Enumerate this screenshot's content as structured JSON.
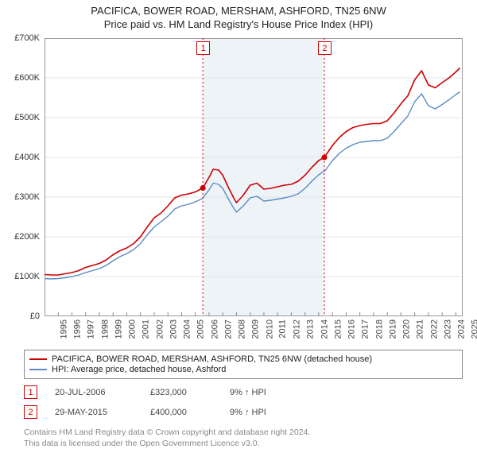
{
  "title": "PACIFICA, BOWER ROAD, MERSHAM, ASHFORD, TN25 6NW",
  "subtitle": "Price paid vs. HM Land Registry's House Price Index (HPI)",
  "chart": {
    "type": "line",
    "background_color": "#ffffff",
    "plot_band_color": "#eef3f8",
    "grid_color": "#e4e4e4",
    "x_domain": [
      1995,
      2025.5
    ],
    "y_domain": [
      0,
      700000
    ],
    "y_ticks": [
      0,
      100000,
      200000,
      300000,
      400000,
      500000,
      600000,
      700000
    ],
    "y_tick_labels": [
      "£0",
      "£100K",
      "£200K",
      "£300K",
      "£400K",
      "£500K",
      "£600K",
      "£700K"
    ],
    "x_ticks": [
      1995,
      1996,
      1997,
      1998,
      1999,
      2000,
      2001,
      2002,
      2003,
      2004,
      2005,
      2006,
      2007,
      2008,
      2009,
      2010,
      2011,
      2012,
      2013,
      2014,
      2015,
      2016,
      2017,
      2018,
      2019,
      2020,
      2021,
      2022,
      2023,
      2024,
      2025
    ],
    "plot_band": [
      2006.55,
      2015.41
    ],
    "series": [
      {
        "id": "property",
        "label": "PACIFICA, BOWER ROAD, MERSHAM, ASHFORD, TN25 6NW (detached house)",
        "color": "#cc0000",
        "width": 1.6,
        "points": [
          [
            1995.0,
            105000
          ],
          [
            1995.5,
            104000
          ],
          [
            1996.0,
            104000
          ],
          [
            1996.5,
            107000
          ],
          [
            1997.0,
            110000
          ],
          [
            1997.5,
            115000
          ],
          [
            1998.0,
            123000
          ],
          [
            1998.5,
            128000
          ],
          [
            1999.0,
            133000
          ],
          [
            1999.5,
            142000
          ],
          [
            2000.0,
            155000
          ],
          [
            2000.5,
            165000
          ],
          [
            2001.0,
            172000
          ],
          [
            2001.5,
            183000
          ],
          [
            2002.0,
            200000
          ],
          [
            2002.5,
            225000
          ],
          [
            2003.0,
            248000
          ],
          [
            2003.5,
            260000
          ],
          [
            2004.0,
            278000
          ],
          [
            2004.5,
            298000
          ],
          [
            2005.0,
            305000
          ],
          [
            2005.5,
            308000
          ],
          [
            2006.0,
            313000
          ],
          [
            2006.55,
            323000
          ],
          [
            2007.0,
            350000
          ],
          [
            2007.3,
            370000
          ],
          [
            2007.7,
            368000
          ],
          [
            2008.0,
            355000
          ],
          [
            2008.4,
            325000
          ],
          [
            2008.8,
            298000
          ],
          [
            2009.0,
            286000
          ],
          [
            2009.5,
            305000
          ],
          [
            2010.0,
            330000
          ],
          [
            2010.5,
            335000
          ],
          [
            2011.0,
            320000
          ],
          [
            2011.5,
            322000
          ],
          [
            2012.0,
            326000
          ],
          [
            2012.5,
            330000
          ],
          [
            2013.0,
            332000
          ],
          [
            2013.5,
            340000
          ],
          [
            2014.0,
            355000
          ],
          [
            2014.5,
            375000
          ],
          [
            2015.0,
            392000
          ],
          [
            2015.41,
            400000
          ],
          [
            2016.0,
            430000
          ],
          [
            2016.5,
            450000
          ],
          [
            2017.0,
            465000
          ],
          [
            2017.5,
            475000
          ],
          [
            2018.0,
            480000
          ],
          [
            2018.5,
            483000
          ],
          [
            2019.0,
            485000
          ],
          [
            2019.5,
            485000
          ],
          [
            2020.0,
            492000
          ],
          [
            2020.5,
            512000
          ],
          [
            2021.0,
            535000
          ],
          [
            2021.5,
            555000
          ],
          [
            2022.0,
            595000
          ],
          [
            2022.5,
            618000
          ],
          [
            2023.0,
            582000
          ],
          [
            2023.5,
            575000
          ],
          [
            2024.0,
            588000
          ],
          [
            2024.5,
            600000
          ],
          [
            2025.0,
            615000
          ],
          [
            2025.3,
            625000
          ]
        ]
      },
      {
        "id": "hpi",
        "label": "HPI: Average price, detached house, Ashford",
        "color": "#5b8bc5",
        "width": 1.4,
        "points": [
          [
            1995.0,
            95000
          ],
          [
            1995.5,
            94000
          ],
          [
            1996.0,
            95000
          ],
          [
            1996.5,
            97000
          ],
          [
            1997.0,
            100000
          ],
          [
            1997.5,
            104000
          ],
          [
            1998.0,
            110000
          ],
          [
            1998.5,
            115000
          ],
          [
            1999.0,
            120000
          ],
          [
            1999.5,
            128000
          ],
          [
            2000.0,
            140000
          ],
          [
            2000.5,
            150000
          ],
          [
            2001.0,
            158000
          ],
          [
            2001.5,
            168000
          ],
          [
            2002.0,
            183000
          ],
          [
            2002.5,
            205000
          ],
          [
            2003.0,
            225000
          ],
          [
            2003.5,
            238000
          ],
          [
            2004.0,
            252000
          ],
          [
            2004.5,
            270000
          ],
          [
            2005.0,
            278000
          ],
          [
            2005.5,
            282000
          ],
          [
            2006.0,
            288000
          ],
          [
            2006.5,
            296000
          ],
          [
            2007.0,
            318000
          ],
          [
            2007.3,
            335000
          ],
          [
            2007.7,
            332000
          ],
          [
            2008.0,
            322000
          ],
          [
            2008.4,
            296000
          ],
          [
            2008.8,
            272000
          ],
          [
            2009.0,
            262000
          ],
          [
            2009.5,
            278000
          ],
          [
            2010.0,
            298000
          ],
          [
            2010.5,
            302000
          ],
          [
            2011.0,
            290000
          ],
          [
            2011.5,
            292000
          ],
          [
            2012.0,
            295000
          ],
          [
            2012.5,
            298000
          ],
          [
            2013.0,
            302000
          ],
          [
            2013.5,
            308000
          ],
          [
            2014.0,
            322000
          ],
          [
            2014.5,
            340000
          ],
          [
            2015.0,
            356000
          ],
          [
            2015.5,
            368000
          ],
          [
            2016.0,
            392000
          ],
          [
            2016.5,
            410000
          ],
          [
            2017.0,
            423000
          ],
          [
            2017.5,
            432000
          ],
          [
            2018.0,
            438000
          ],
          [
            2018.5,
            440000
          ],
          [
            2019.0,
            442000
          ],
          [
            2019.5,
            442000
          ],
          [
            2020.0,
            448000
          ],
          [
            2020.5,
            465000
          ],
          [
            2021.0,
            485000
          ],
          [
            2021.5,
            504000
          ],
          [
            2022.0,
            540000
          ],
          [
            2022.5,
            560000
          ],
          [
            2023.0,
            530000
          ],
          [
            2023.5,
            522000
          ],
          [
            2024.0,
            533000
          ],
          [
            2024.5,
            545000
          ],
          [
            2025.0,
            558000
          ],
          [
            2025.3,
            565000
          ]
        ]
      }
    ],
    "sale_markers": [
      {
        "n": "1",
        "x": 2006.55,
        "y": 323000,
        "line_color": "#cc0000",
        "dot_color": "#cc0000"
      },
      {
        "n": "2",
        "x": 2015.41,
        "y": 400000,
        "line_color": "#cc0000",
        "dot_color": "#cc0000"
      }
    ]
  },
  "legend": {
    "items": [
      {
        "color": "#cc0000",
        "label": "PACIFICA, BOWER ROAD, MERSHAM, ASHFORD, TN25 6NW (detached house)"
      },
      {
        "color": "#5b8bc5",
        "label": "HPI: Average price, detached house, Ashford"
      }
    ]
  },
  "sales": [
    {
      "n": "1",
      "date": "20-JUL-2006",
      "price": "£323,000",
      "delta": "9% ↑ HPI"
    },
    {
      "n": "2",
      "date": "29-MAY-2015",
      "price": "£400,000",
      "delta": "9% ↑ HPI"
    }
  ],
  "footnote_l1": "Contains HM Land Registry data © Crown copyright and database right 2024.",
  "footnote_l2": "This data is licensed under the Open Government Licence v3.0."
}
